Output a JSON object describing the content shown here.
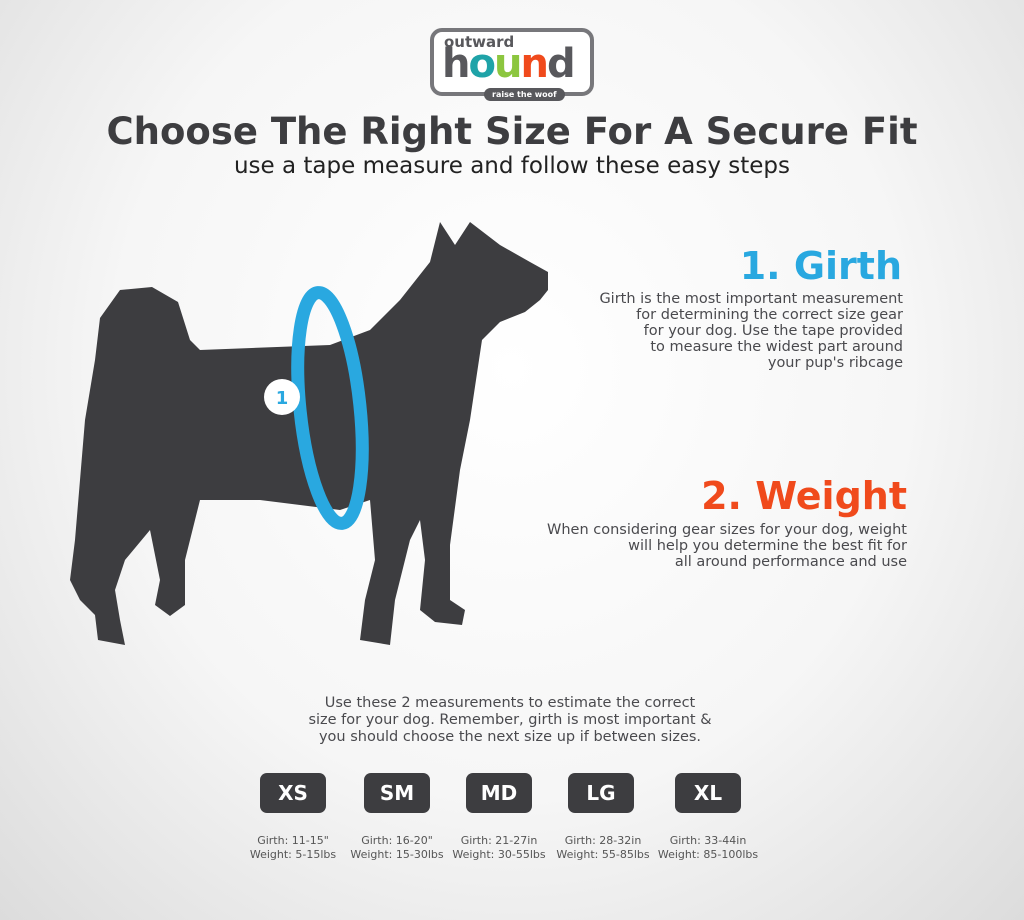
{
  "logo": {
    "top": "outward",
    "word": [
      "h",
      "o",
      "u",
      "n",
      "d"
    ],
    "colors": [
      "#58585c",
      "#1fa3a8",
      "#8cc63f",
      "#f04a1c",
      "#58585c"
    ],
    "tagline": "raise the woof"
  },
  "title": "Choose The Right Size For A Secure Fit",
  "subtitle": "use a tape measure and follow these easy steps",
  "girth": {
    "heading": "1. Girth",
    "marker": "1",
    "color": "#29a8e0",
    "lines": [
      "Girth is the most important measurement",
      "for determining the correct size gear",
      "for your dog. Use the tape provided",
      "to measure the widest part around",
      "your pup's ribcage"
    ]
  },
  "weight": {
    "heading": "2. Weight",
    "color": "#f04a1c",
    "lines": [
      "When considering gear sizes for your dog, weight",
      "will help you determine the best fit for",
      "all around performance and use"
    ]
  },
  "note": [
    "Use these 2 measurements to estimate the correct",
    "size for your dog. Remember, girth is most important &",
    "you should choose the next size up if between sizes."
  ],
  "sizes": [
    {
      "label": "XS",
      "girth": "Girth: 11-15\"",
      "weight": "Weight: 5-15lbs"
    },
    {
      "label": "SM",
      "girth": "Girth: 16-20\"",
      "weight": "Weight: 15-30lbs"
    },
    {
      "label": "MD",
      "girth": "Girth: 21-27in",
      "weight": "Weight: 30-55lbs"
    },
    {
      "label": "LG",
      "girth": "Girth: 28-32in",
      "weight": "Weight: 55-85lbs"
    },
    {
      "label": "XL",
      "girth": "Girth: 33-44in",
      "weight": "Weight: 85-100lbs"
    }
  ]
}
